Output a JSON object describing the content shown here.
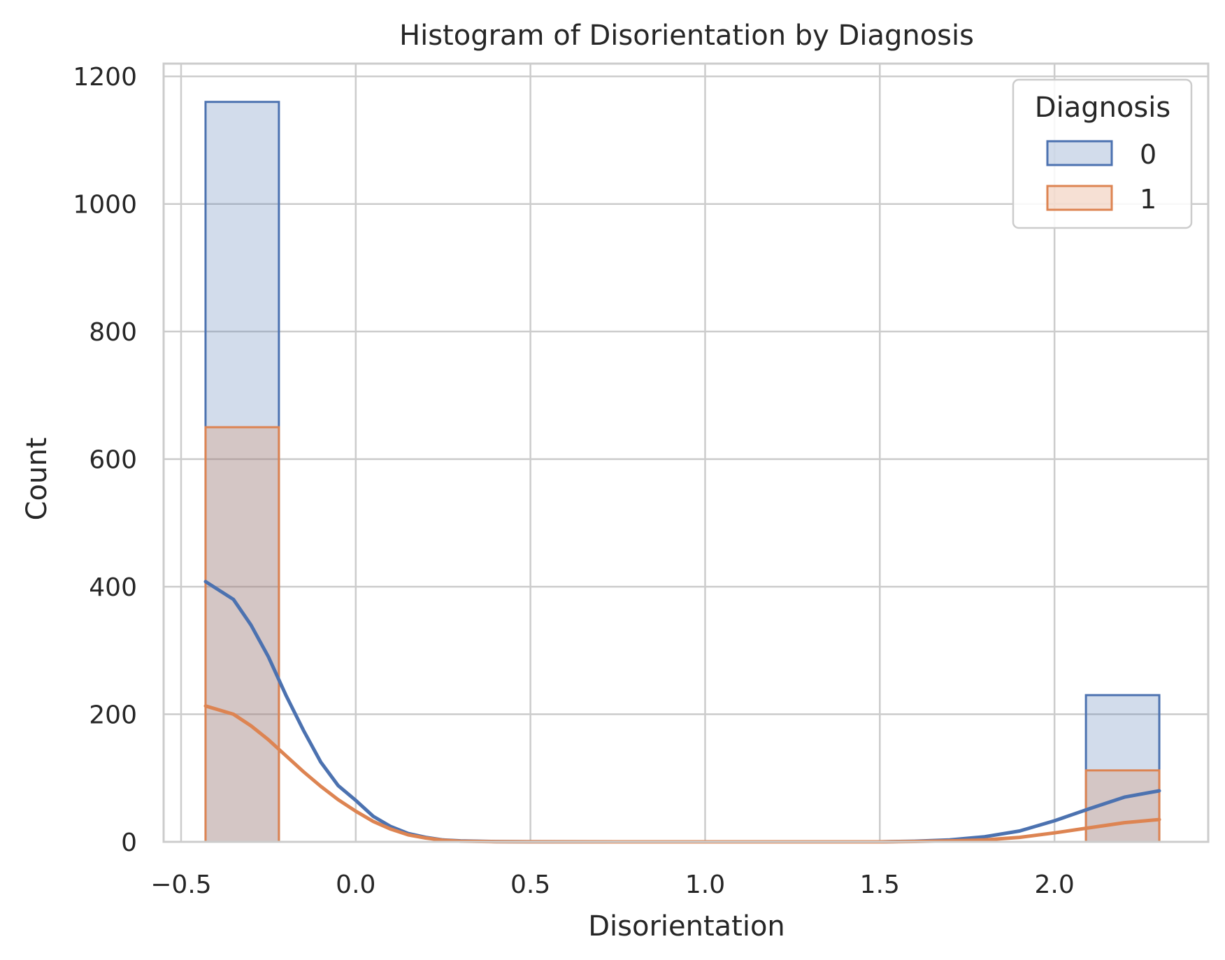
{
  "chart_data": {
    "type": "bar",
    "title": "Histogram of Disorientation by Diagnosis",
    "xlabel": "Disorientation",
    "ylabel": "Count",
    "xlim": [
      -0.55,
      2.44
    ],
    "ylim": [
      0,
      1220
    ],
    "xticks": [
      -0.5,
      0.0,
      0.5,
      1.0,
      1.5,
      2.0
    ],
    "xtick_labels": [
      "−0.5",
      "0.0",
      "0.5",
      "1.0",
      "1.5",
      "2.0"
    ],
    "yticks": [
      0,
      200,
      400,
      600,
      800,
      1000,
      1200
    ],
    "ytick_labels": [
      "0",
      "200",
      "400",
      "600",
      "800",
      "1000",
      "1200"
    ],
    "grid": true,
    "legend": {
      "title": "Diagnosis",
      "position": "top-right"
    },
    "bins": [
      {
        "x0": -0.43,
        "x1": -0.22
      },
      {
        "x0": 2.09,
        "x1": 2.3
      }
    ],
    "series": [
      {
        "name": "0",
        "color": "#4c72b0",
        "fill": "rgba(76,114,176,0.25)",
        "values": [
          1160,
          230
        ],
        "kde": [
          [
            -0.43,
            408
          ],
          [
            -0.35,
            380
          ],
          [
            -0.3,
            340
          ],
          [
            -0.25,
            290
          ],
          [
            -0.2,
            230
          ],
          [
            -0.15,
            175
          ],
          [
            -0.1,
            125
          ],
          [
            -0.05,
            88
          ],
          [
            0.0,
            65
          ],
          [
            0.05,
            40
          ],
          [
            0.1,
            24
          ],
          [
            0.15,
            13
          ],
          [
            0.2,
            7
          ],
          [
            0.25,
            3
          ],
          [
            0.3,
            1.5
          ],
          [
            0.4,
            0.4
          ],
          [
            0.5,
            0.1
          ],
          [
            1.0,
            0
          ],
          [
            1.5,
            0
          ],
          [
            1.6,
            1
          ],
          [
            1.7,
            3
          ],
          [
            1.8,
            8
          ],
          [
            1.9,
            17
          ],
          [
            2.0,
            33
          ],
          [
            2.1,
            52
          ],
          [
            2.2,
            70
          ],
          [
            2.3,
            80
          ]
        ]
      },
      {
        "name": "1",
        "color": "#dd8452",
        "fill": "rgba(221,132,82,0.25)",
        "values": [
          650,
          112
        ],
        "kde": [
          [
            -0.43,
            213
          ],
          [
            -0.35,
            200
          ],
          [
            -0.3,
            182
          ],
          [
            -0.25,
            160
          ],
          [
            -0.2,
            135
          ],
          [
            -0.15,
            110
          ],
          [
            -0.1,
            87
          ],
          [
            -0.05,
            66
          ],
          [
            0.0,
            48
          ],
          [
            0.05,
            32
          ],
          [
            0.1,
            20
          ],
          [
            0.15,
            11
          ],
          [
            0.2,
            6
          ],
          [
            0.25,
            2.5
          ],
          [
            0.3,
            1
          ],
          [
            0.4,
            0.3
          ],
          [
            0.5,
            0.1
          ],
          [
            1.0,
            0
          ],
          [
            1.5,
            0
          ],
          [
            1.6,
            0.5
          ],
          [
            1.7,
            1.5
          ],
          [
            1.8,
            3
          ],
          [
            1.9,
            7
          ],
          [
            2.0,
            14
          ],
          [
            2.1,
            22
          ],
          [
            2.2,
            30
          ],
          [
            2.3,
            35
          ]
        ]
      }
    ]
  }
}
